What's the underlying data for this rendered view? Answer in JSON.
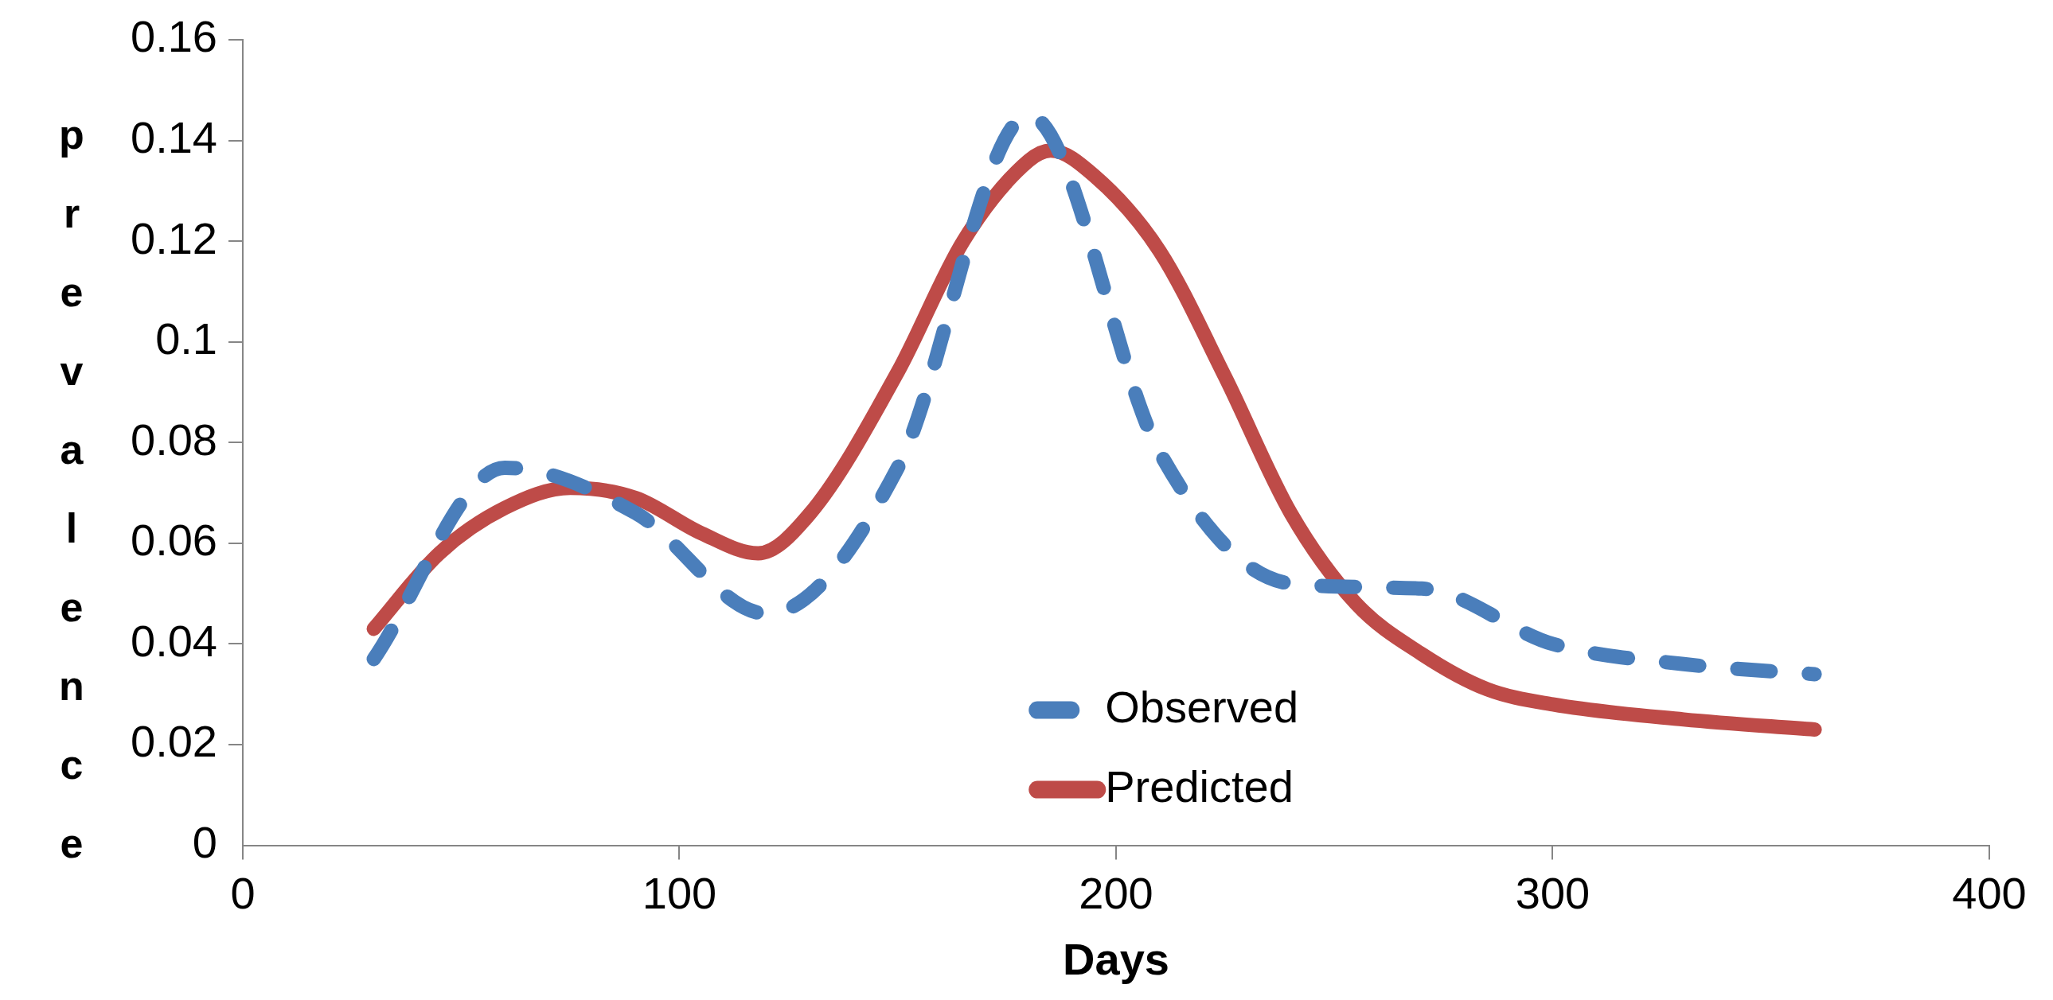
{
  "chart_data": {
    "type": "line",
    "xlabel": "Days",
    "ylabel": "prevalence",
    "xlim": [
      0,
      400
    ],
    "xticks": [
      0,
      100,
      200,
      300,
      400
    ],
    "ylim": [
      0,
      0.16
    ],
    "yticks": [
      0,
      0.02,
      0.04,
      0.06,
      0.08,
      0.1,
      0.12,
      0.14,
      0.16
    ],
    "grid": false,
    "legend": "bottom",
    "marker": "none",
    "series": [
      {
        "name": "Observed",
        "color": "#4a7ebb",
        "line_style": "dashed",
        "x": [
          30,
          60,
          90,
          120,
          150,
          180,
          210,
          240,
          270,
          300,
          330,
          360
        ],
        "values": [
          0.037,
          0.075,
          0.066,
          0.046,
          0.075,
          0.145,
          0.078,
          0.052,
          0.051,
          0.04,
          0.036,
          0.034
        ]
      },
      {
        "name": "Predicted",
        "color": "#be4b48",
        "line_style": "solid",
        "x": [
          30,
          45,
          60,
          75,
          90,
          105,
          118,
          130,
          150,
          165,
          180,
          185,
          195,
          210,
          225,
          240,
          255,
          270,
          285,
          300,
          330,
          360
        ],
        "values": [
          0.043,
          0.058,
          0.067,
          0.071,
          0.069,
          0.062,
          0.058,
          0.066,
          0.094,
          0.12,
          0.136,
          0.138,
          0.133,
          0.118,
          0.093,
          0.066,
          0.048,
          0.038,
          0.031,
          0.028,
          0.025,
          0.023
        ]
      }
    ]
  }
}
